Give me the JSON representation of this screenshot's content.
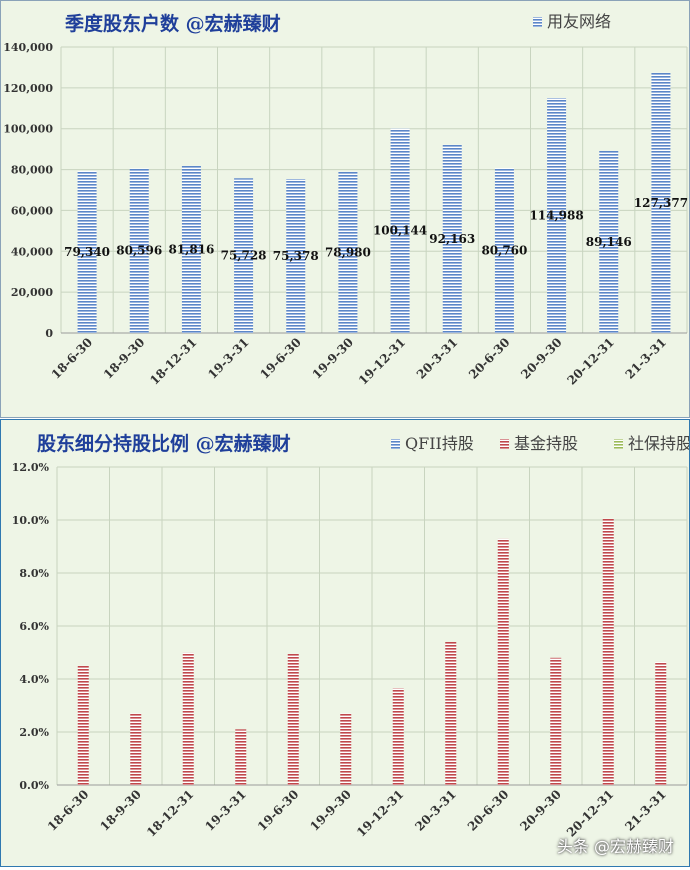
{
  "watermark": "头条 @宏赫臻财",
  "colors": {
    "bar_blue": "#5b86c8",
    "bar_red": "#c0484c",
    "bar_green": "#9bbb59",
    "grid": "#c8d4bf",
    "title": "#1f3f9a"
  },
  "chart_data": [
    {
      "type": "bar",
      "title": "季度股东户数 @宏赫臻财",
      "categories": [
        "18-6-30",
        "18-9-30",
        "18-12-31",
        "19-3-31",
        "19-6-30",
        "19-9-30",
        "19-12-31",
        "20-3-31",
        "20-6-30",
        "20-9-30",
        "20-12-31",
        "21-3-31"
      ],
      "series": [
        {
          "name": "用友网络",
          "values": [
            79340,
            80596,
            81816,
            75728,
            75378,
            78980,
            100144,
            92163,
            80760,
            114988,
            89146,
            127377
          ]
        }
      ],
      "data_labels": [
        "79,340",
        "80,596",
        "81,816",
        "75,728",
        "75,378",
        "78,980",
        "100,144",
        "92,163",
        "80,760",
        "114,988",
        "89,146",
        "127,377"
      ],
      "y_ticks": [
        "0",
        "20,000",
        "40,000",
        "60,000",
        "80,000",
        "100,000",
        "120,000",
        "140,000"
      ],
      "ylim": [
        0,
        140000
      ],
      "legend": "top-right",
      "grid": true
    },
    {
      "type": "bar",
      "title": "股东细分持股比例 @宏赫臻财",
      "categories": [
        "18-6-30",
        "18-9-30",
        "18-12-31",
        "19-3-31",
        "19-6-30",
        "19-9-30",
        "19-12-31",
        "20-3-31",
        "20-6-30",
        "20-9-30",
        "20-12-31",
        "21-3-31"
      ],
      "series": [
        {
          "name": "QFII持股",
          "values": [
            0,
            0,
            0,
            0,
            0,
            0,
            0,
            0,
            0,
            0,
            0,
            0
          ]
        },
        {
          "name": "基金持股",
          "values": [
            4.5,
            2.7,
            5.0,
            2.1,
            4.95,
            2.7,
            3.65,
            5.4,
            9.3,
            4.8,
            10.05,
            4.65
          ]
        },
        {
          "name": "社保持股",
          "values": [
            0,
            0,
            0,
            0,
            0,
            0,
            0,
            0,
            0,
            0,
            0,
            0
          ]
        }
      ],
      "y_ticks": [
        "0.0%",
        "2.0%",
        "4.0%",
        "6.0%",
        "8.0%",
        "10.0%",
        "12.0%"
      ],
      "ylim": [
        0,
        12
      ],
      "legend": "top-right",
      "grid": true
    }
  ]
}
